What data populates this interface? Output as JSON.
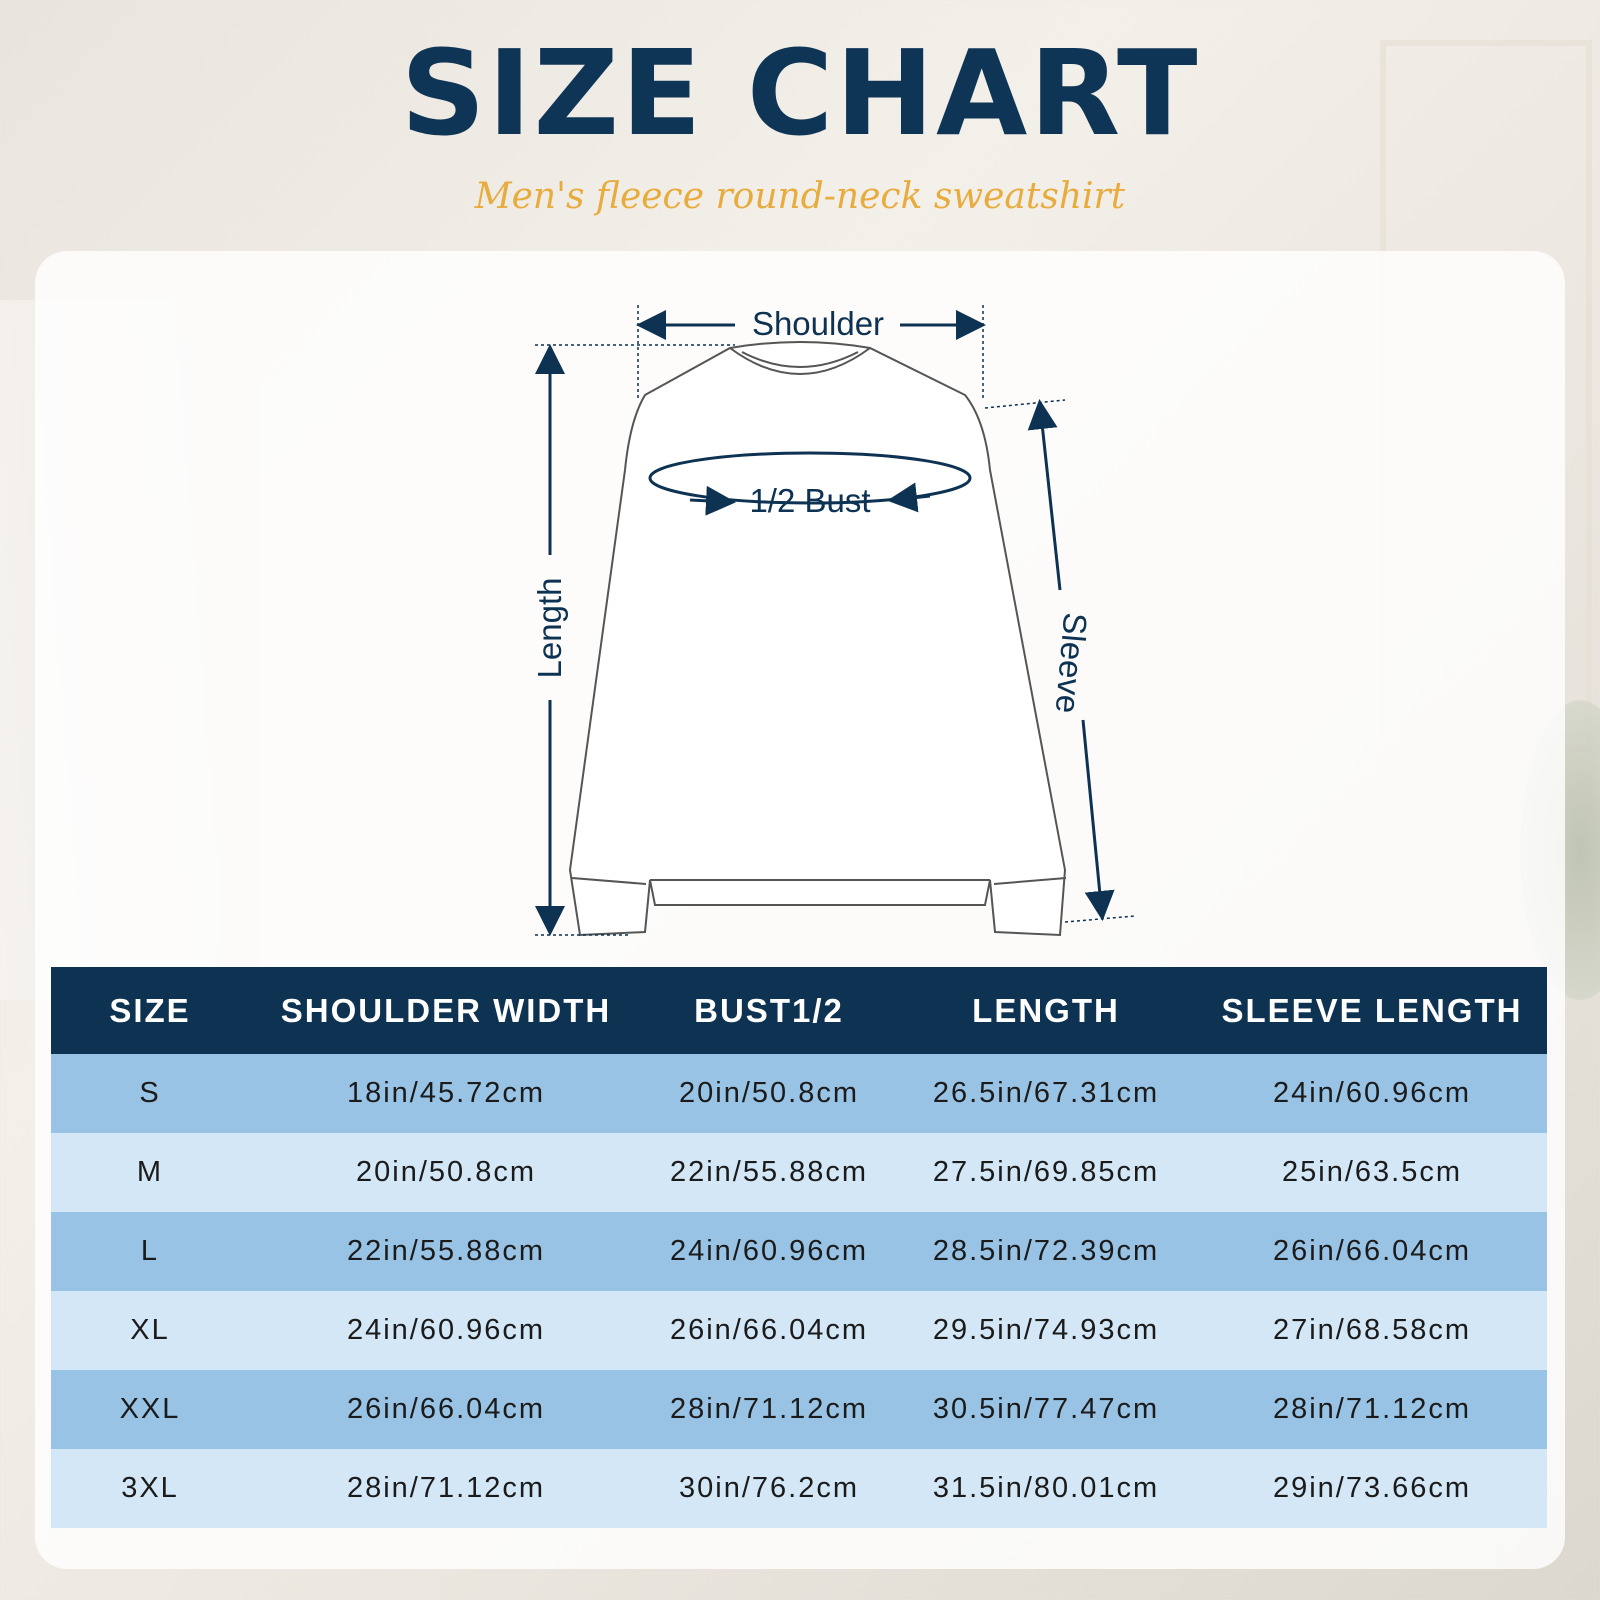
{
  "header": {
    "title": "SIZE CHART",
    "subtitle": "Men's fleece round-neck sweatshirt"
  },
  "diagram": {
    "shoulder": "Shoulder",
    "bust": "1/2 Bust",
    "length": "Length",
    "sleeve": "Sleeve"
  },
  "colors": {
    "title": "#0f3556",
    "subtitle": "#e8ac3e",
    "table_header": "#0d3252",
    "row_dark": "#98c3e5",
    "row_light": "#d3e7f6"
  },
  "table": {
    "columns": [
      "SIZE",
      "SHOULDER WIDTH",
      "BUST1/2",
      "LENGTH",
      "SLEEVE LENGTH"
    ],
    "rows": [
      [
        "S",
        "18in/45.72cm",
        "20in/50.8cm",
        "26.5in/67.31cm",
        "24in/60.96cm"
      ],
      [
        "M",
        "20in/50.8cm",
        "22in/55.88cm",
        "27.5in/69.85cm",
        "25in/63.5cm"
      ],
      [
        "L",
        "22in/55.88cm",
        "24in/60.96cm",
        "28.5in/72.39cm",
        "26in/66.04cm"
      ],
      [
        "XL",
        "24in/60.96cm",
        "26in/66.04cm",
        "29.5in/74.93cm",
        "27in/68.58cm"
      ],
      [
        "XXL",
        "26in/66.04cm",
        "28in/71.12cm",
        "30.5in/77.47cm",
        "28in/71.12cm"
      ],
      [
        "3XL",
        "28in/71.12cm",
        "30in/76.2cm",
        "31.5in/80.01cm",
        "29in/73.66cm"
      ]
    ]
  }
}
